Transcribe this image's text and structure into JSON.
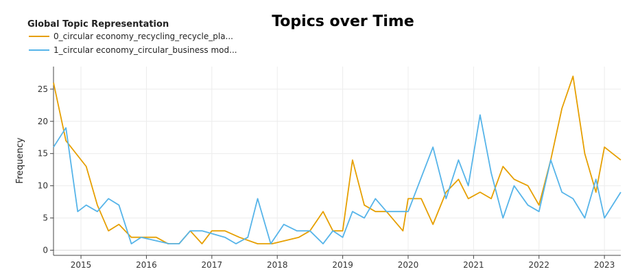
{
  "chart_data": {
    "type": "line",
    "title": "Topics over Time",
    "xlabel": "",
    "ylabel": "Frequency",
    "legend_title": "Global Topic Representation",
    "legend_placement": "top-left",
    "grid": true,
    "xlim": [
      2014.58,
      2023.25
    ],
    "ylim": [
      -0.8,
      28.5
    ],
    "x_ticks": [
      "2015",
      "2016",
      "2017",
      "2018",
      "2019",
      "2020",
      "2021",
      "2022",
      "2023"
    ],
    "y_ticks": [
      0,
      5,
      10,
      15,
      20,
      25
    ],
    "series": [
      {
        "name": "0_circular economy_recycling_recycle_pla...",
        "color": "#E69F00",
        "x": [
          2014.58,
          2014.77,
          2015.08,
          2015.25,
          2015.42,
          2015.58,
          2015.77,
          2015.92,
          2016.15,
          2016.33,
          2016.5,
          2016.67,
          2016.85,
          2017.0,
          2017.2,
          2017.42,
          2017.7,
          2017.92,
          2018.33,
          2018.5,
          2018.7,
          2018.85,
          2019.0,
          2019.15,
          2019.33,
          2019.5,
          2019.67,
          2019.92,
          2020.0,
          2020.2,
          2020.38,
          2020.58,
          2020.77,
          2020.92,
          2021.1,
          2021.27,
          2021.45,
          2021.62,
          2021.83,
          2022.0,
          2022.18,
          2022.35,
          2022.52,
          2022.7,
          2022.87,
          2023.0,
          2023.25
        ],
        "y": [
          26,
          17,
          13,
          7,
          3,
          4,
          2,
          2,
          2,
          1,
          1,
          3,
          1,
          3,
          3,
          2,
          1,
          1,
          2,
          3,
          6,
          3,
          3,
          14,
          7,
          6,
          6,
          3,
          8,
          8,
          4,
          9,
          11,
          8,
          9,
          8,
          13,
          11,
          10,
          7,
          14,
          22,
          27,
          15,
          9,
          16,
          14
        ]
      },
      {
        "name": "1_circular economy_circular_business mod...",
        "color": "#56B4E9",
        "x": [
          2014.58,
          2014.77,
          2014.95,
          2015.08,
          2015.25,
          2015.42,
          2015.58,
          2015.77,
          2015.92,
          2016.35,
          2016.5,
          2016.67,
          2016.85,
          2017.2,
          2017.37,
          2017.55,
          2017.7,
          2017.9,
          2018.1,
          2018.3,
          2018.5,
          2018.7,
          2018.85,
          2019.0,
          2019.15,
          2019.33,
          2019.5,
          2019.67,
          2019.83,
          2020.0,
          2020.38,
          2020.58,
          2020.77,
          2020.92,
          2021.1,
          2021.27,
          2021.45,
          2021.62,
          2021.83,
          2022.0,
          2022.18,
          2022.35,
          2022.52,
          2022.7,
          2022.87,
          2023.0,
          2023.25
        ],
        "y": [
          16,
          19,
          6,
          7,
          6,
          8,
          7,
          1,
          2,
          1,
          1,
          3,
          3,
          2,
          1,
          2,
          8,
          1,
          4,
          3,
          3,
          1,
          3,
          2,
          6,
          5,
          8,
          6,
          6,
          6,
          16,
          8,
          14,
          10,
          21,
          12,
          5,
          10,
          7,
          6,
          14,
          9,
          8,
          5,
          11,
          5,
          9
        ]
      }
    ]
  }
}
